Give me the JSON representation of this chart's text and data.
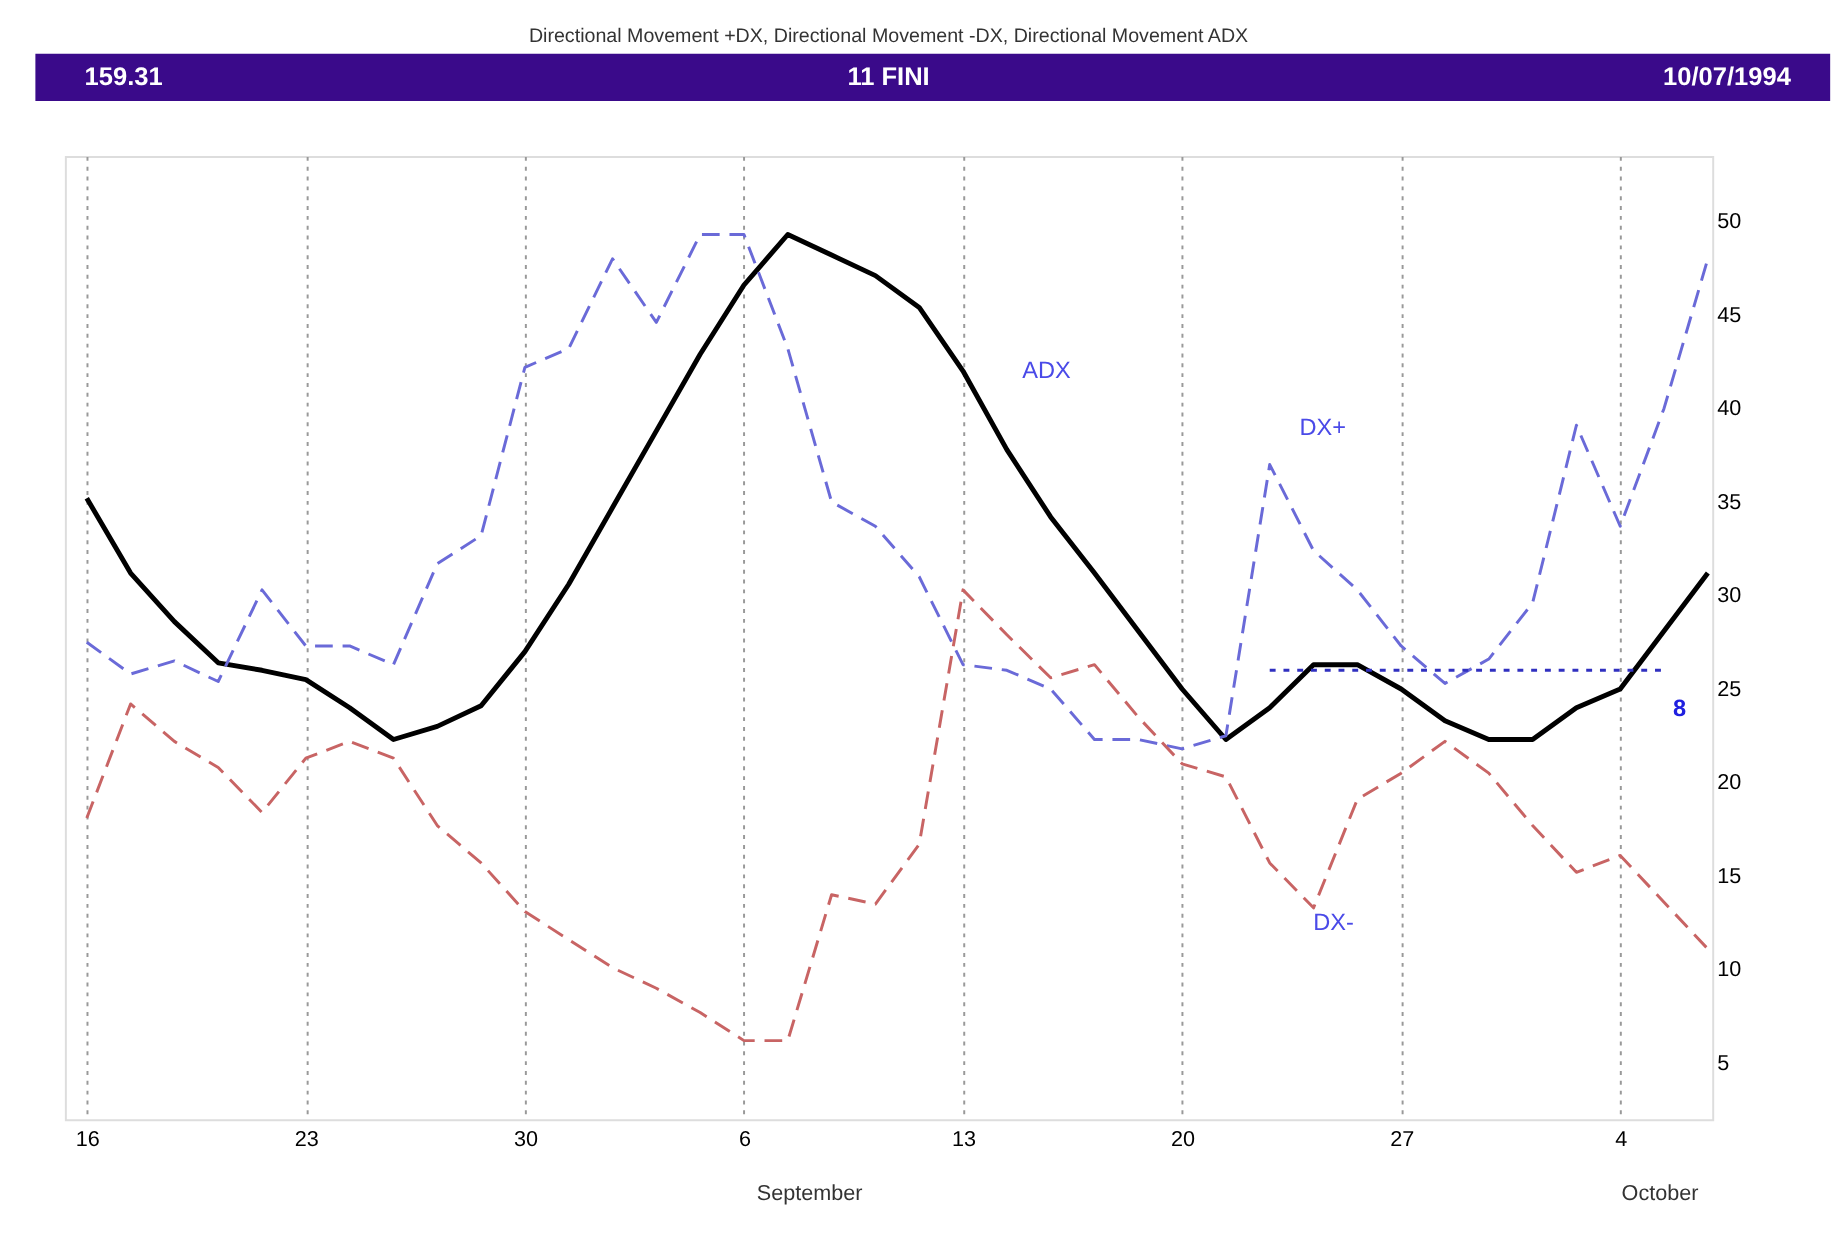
{
  "chart_data": {
    "type": "line",
    "title": "Directional Movement +DX, Directional Movement -DX, Directional Movement ADX",
    "categories": [
      "16",
      null,
      null,
      null,
      null,
      "23",
      null,
      null,
      null,
      null,
      "30",
      null,
      null,
      null,
      null,
      "6",
      null,
      null,
      null,
      null,
      "13",
      null,
      null,
      null,
      null,
      "20",
      null,
      null,
      null,
      null,
      "27",
      null,
      null,
      null,
      null,
      "4",
      null,
      null
    ],
    "ylim": [
      2,
      53.5
    ],
    "yticks": [
      5,
      10,
      15,
      20,
      25,
      30,
      35,
      40,
      45,
      50
    ],
    "grid": "x",
    "marker": "none",
    "series": [
      {
        "color": "#000000",
        "line_style": "solid",
        "values": [
          35.2,
          31.2,
          28.6,
          26.4,
          26,
          25.5,
          24,
          22.3,
          23,
          24.1,
          27,
          30.6,
          34.7,
          38.8,
          42.9,
          46.6,
          49.3,
          48.2,
          47.1,
          45.4,
          42,
          37.8,
          34.2,
          31.2,
          28.1,
          25,
          22.3,
          24,
          26.3,
          26.3,
          25,
          23.3,
          22.3,
          22.3,
          24,
          25,
          28.1,
          31.2
        ]
      },
      {
        "color": "#6a6ad8",
        "line_style": "dashed",
        "values": [
          27.5,
          25.8,
          26.5,
          25.4,
          30.3,
          27.3,
          27.3,
          26.3,
          31.7,
          33.2,
          42.2,
          43.2,
          48,
          44.6,
          49.3,
          49.3,
          43.2,
          35,
          33.7,
          31,
          26.3,
          26,
          25,
          22.3,
          22.3,
          21.8,
          22.5,
          37,
          32.4,
          30.3,
          27.3,
          25.3,
          26.6,
          29.6,
          39.1,
          33.7,
          40,
          48
        ]
      },
      {
        "color": "#c86464",
        "line_style": "dashed",
        "values": [
          18.1,
          24.2,
          22.2,
          20.8,
          18.4,
          21.3,
          22.2,
          21.3,
          17.7,
          15.7,
          13.1,
          11.6,
          10.1,
          9,
          7.7,
          6.2,
          6.2,
          14,
          13.5,
          16.7,
          30.3,
          27.9,
          25.6,
          26.3,
          23.5,
          21,
          20.3,
          15.7,
          13.3,
          19.1,
          20.5,
          22.2,
          20.5,
          17.7,
          15.2,
          16.1,
          13.6,
          11.1
        ]
      },
      {
        "type": "line",
        "color": "#3030c0",
        "line_style": "dotted",
        "values": [
          null,
          null,
          null,
          null,
          null,
          null,
          null,
          null,
          null,
          null,
          null,
          null,
          null,
          null,
          null,
          null,
          null,
          null,
          null,
          null,
          null,
          null,
          null,
          null,
          null,
          null,
          null,
          26,
          26,
          26,
          26,
          26,
          26,
          26,
          26,
          26,
          26,
          null
        ]
      }
    ],
    "annotations": [
      "159.31",
      "11 FINI",
      "10/07/1994",
      "September",
      "October",
      "ADX",
      "DX+",
      "DX-",
      "8"
    ]
  }
}
